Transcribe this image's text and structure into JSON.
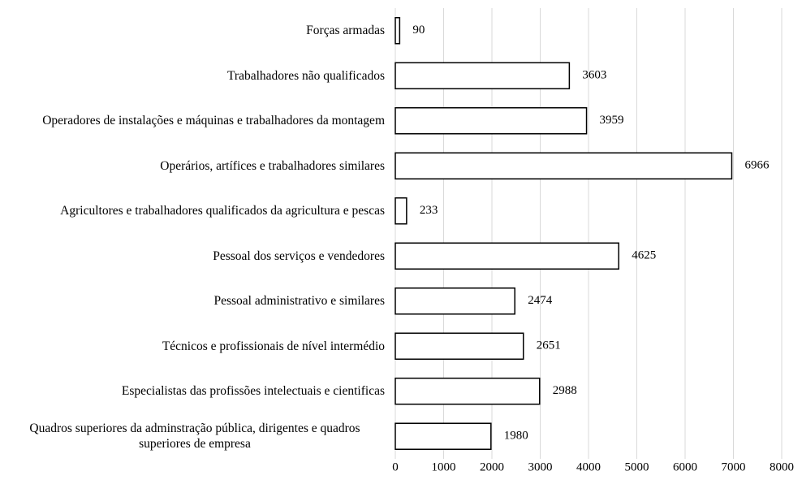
{
  "chart_data": {
    "type": "bar",
    "orientation": "horizontal",
    "categories": [
      "Forças armadas",
      "Trabalhadores não qualificados",
      "Operadores de instalações e máquinas e trabalhadores da montagem",
      "Operários, artífices e trabalhadores similares",
      "Agricultores e trabalhadores qualificados da agricultura e pescas",
      "Pessoal dos serviços e vendedores",
      "Pessoal administrativo e similares",
      "Técnicos e profissionais de nível intermédio",
      "Especialistas das profissões intelectuais e cientificas",
      "Quadros superiores da adminstração pública, dirigentes e quadros superiores de empresa"
    ],
    "values": [
      90,
      3603,
      3959,
      6966,
      233,
      4625,
      2474,
      2651,
      2988,
      1980
    ],
    "color": "#ffffff",
    "edge_color": "#000000",
    "xlim": [
      0,
      8000
    ],
    "xticks": [
      0,
      1000,
      2000,
      3000,
      4000,
      5000,
      6000,
      7000,
      8000
    ],
    "grid": true
  }
}
